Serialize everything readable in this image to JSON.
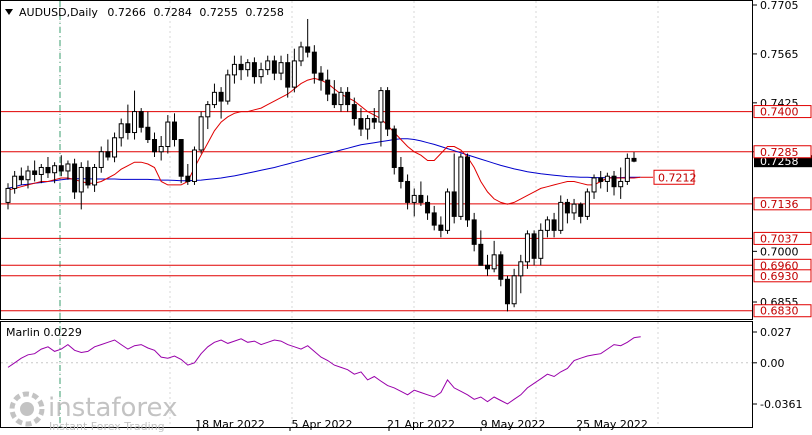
{
  "chart_data": {
    "type": "candlestick",
    "symbol": "AUDUSD",
    "timeframe": "Daily",
    "ohlc_header": [
      "0.7266",
      "0.7284",
      "0.7255",
      "0.7258"
    ],
    "price_ticks": [
      "0.7705",
      "0.7565",
      "0.7425",
      "0.7285",
      "0.7000",
      "0.6855"
    ],
    "current_price": 0.7258,
    "current_price_label": "0.7258",
    "levels": [
      {
        "value": 0.74,
        "label": "0.7400"
      },
      {
        "value": 0.7285,
        "label": "0.7285"
      },
      {
        "value": 0.7136,
        "label": "0.7136"
      },
      {
        "value": 0.7037,
        "label": "0.7037"
      },
      {
        "value": 0.696,
        "label": "0.6960"
      },
      {
        "value": 0.693,
        "label": "0.6930"
      },
      {
        "value": 0.683,
        "label": "0.6830"
      }
    ],
    "annotation": {
      "value": 0.7212,
      "label": "0.7212"
    },
    "date_labels": [
      "18 Mar 2022",
      "5 Apr 2022",
      "21 Apr 2022",
      "9 May 2022",
      "25 May 2022"
    ],
    "candles": [
      [
        0.714,
        0.7195,
        0.712,
        0.718
      ],
      [
        0.718,
        0.723,
        0.7165,
        0.7215
      ],
      [
        0.7215,
        0.724,
        0.719,
        0.7205
      ],
      [
        0.7205,
        0.7245,
        0.718,
        0.723
      ],
      [
        0.723,
        0.726,
        0.72,
        0.722
      ],
      [
        0.722,
        0.725,
        0.7195,
        0.724
      ],
      [
        0.724,
        0.727,
        0.721,
        0.7225
      ],
      [
        0.7225,
        0.7255,
        0.7195,
        0.7245
      ],
      [
        0.7245,
        0.7275,
        0.7215,
        0.723
      ],
      [
        0.723,
        0.726,
        0.7205,
        0.725
      ],
      [
        0.725,
        0.7265,
        0.715,
        0.717
      ],
      [
        0.717,
        0.7255,
        0.712,
        0.724
      ],
      [
        0.724,
        0.726,
        0.718,
        0.719
      ],
      [
        0.719,
        0.725,
        0.717,
        0.724
      ],
      [
        0.724,
        0.73,
        0.7225,
        0.7285
      ],
      [
        0.7285,
        0.732,
        0.726,
        0.727
      ],
      [
        0.727,
        0.734,
        0.7255,
        0.7325
      ],
      [
        0.7325,
        0.738,
        0.73,
        0.7365
      ],
      [
        0.7365,
        0.742,
        0.732,
        0.734
      ],
      [
        0.734,
        0.746,
        0.732,
        0.74
      ],
      [
        0.74,
        0.741,
        0.734,
        0.7355
      ],
      [
        0.7355,
        0.74,
        0.731,
        0.732
      ],
      [
        0.732,
        0.734,
        0.727,
        0.7285
      ],
      [
        0.7285,
        0.733,
        0.726,
        0.73
      ],
      [
        0.73,
        0.739,
        0.728,
        0.737
      ],
      [
        0.737,
        0.7395,
        0.73,
        0.732
      ],
      [
        0.732,
        0.732,
        0.7195,
        0.7215
      ],
      [
        0.7215,
        0.725,
        0.719,
        0.72
      ],
      [
        0.72,
        0.73,
        0.719,
        0.729
      ],
      [
        0.729,
        0.74,
        0.728,
        0.7385
      ],
      [
        0.7385,
        0.743,
        0.735,
        0.742
      ],
      [
        0.742,
        0.748,
        0.741,
        0.7455
      ],
      [
        0.7455,
        0.747,
        0.738,
        0.743
      ],
      [
        0.743,
        0.752,
        0.742,
        0.7505
      ],
      [
        0.7505,
        0.756,
        0.748,
        0.7535
      ],
      [
        0.7535,
        0.756,
        0.749,
        0.752
      ],
      [
        0.752,
        0.755,
        0.75,
        0.754
      ],
      [
        0.754,
        0.7555,
        0.748,
        0.75
      ],
      [
        0.75,
        0.754,
        0.748,
        0.752
      ],
      [
        0.752,
        0.756,
        0.7505,
        0.7545
      ],
      [
        0.7545,
        0.756,
        0.749,
        0.751
      ],
      [
        0.751,
        0.756,
        0.749,
        0.754
      ],
      [
        0.754,
        0.7565,
        0.744,
        0.747
      ],
      [
        0.747,
        0.758,
        0.7455,
        0.7545
      ],
      [
        0.7545,
        0.76,
        0.753,
        0.7585
      ],
      [
        0.7585,
        0.7665,
        0.7555,
        0.757
      ],
      [
        0.757,
        0.759,
        0.748,
        0.751
      ],
      [
        0.751,
        0.753,
        0.746,
        0.749
      ],
      [
        0.749,
        0.752,
        0.743,
        0.745
      ],
      [
        0.745,
        0.749,
        0.741,
        0.742
      ],
      [
        0.742,
        0.747,
        0.74,
        0.7455
      ],
      [
        0.7455,
        0.747,
        0.74,
        0.742
      ],
      [
        0.742,
        0.744,
        0.736,
        0.738
      ],
      [
        0.738,
        0.741,
        0.733,
        0.735
      ],
      [
        0.735,
        0.739,
        0.732,
        0.738
      ],
      [
        0.738,
        0.741,
        0.735,
        0.737
      ],
      [
        0.737,
        0.747,
        0.73,
        0.746
      ],
      [
        0.746,
        0.747,
        0.733,
        0.735
      ],
      [
        0.735,
        0.736,
        0.722,
        0.724
      ],
      [
        0.724,
        0.727,
        0.718,
        0.72
      ],
      [
        0.72,
        0.722,
        0.712,
        0.714
      ],
      [
        0.714,
        0.718,
        0.71,
        0.716
      ],
      [
        0.716,
        0.72,
        0.713,
        0.714
      ],
      [
        0.714,
        0.716,
        0.709,
        0.711
      ],
      [
        0.711,
        0.713,
        0.706,
        0.7075
      ],
      [
        0.7075,
        0.71,
        0.704,
        0.706
      ],
      [
        0.706,
        0.718,
        0.705,
        0.717
      ],
      [
        0.717,
        0.728,
        0.708,
        0.71
      ],
      [
        0.71,
        0.728,
        0.709,
        0.727
      ],
      [
        0.727,
        0.728,
        0.707,
        0.709
      ],
      [
        0.709,
        0.711,
        0.7,
        0.702
      ],
      [
        0.702,
        0.706,
        0.696,
        0.696
      ],
      [
        0.696,
        0.699,
        0.693,
        0.695
      ],
      [
        0.695,
        0.703,
        0.694,
        0.699
      ],
      [
        0.699,
        0.7,
        0.69,
        0.692
      ],
      [
        0.692,
        0.693,
        0.6828,
        0.685
      ],
      [
        0.685,
        0.695,
        0.684,
        0.693
      ],
      [
        0.693,
        0.699,
        0.688,
        0.697
      ],
      [
        0.697,
        0.706,
        0.695,
        0.705
      ],
      [
        0.705,
        0.706,
        0.696,
        0.698
      ],
      [
        0.698,
        0.708,
        0.696,
        0.706
      ],
      [
        0.706,
        0.71,
        0.704,
        0.709
      ],
      [
        0.709,
        0.711,
        0.704,
        0.706
      ],
      [
        0.706,
        0.716,
        0.705,
        0.714
      ],
      [
        0.714,
        0.715,
        0.708,
        0.711
      ],
      [
        0.711,
        0.715,
        0.709,
        0.7135
      ],
      [
        0.7135,
        0.714,
        0.708,
        0.71
      ],
      [
        0.71,
        0.718,
        0.709,
        0.717
      ],
      [
        0.717,
        0.722,
        0.715,
        0.721
      ],
      [
        0.721,
        0.723,
        0.718,
        0.72
      ],
      [
        0.72,
        0.7225,
        0.717,
        0.7215
      ],
      [
        0.7215,
        0.723,
        0.716,
        0.7185
      ],
      [
        0.7185,
        0.724,
        0.715,
        0.72
      ],
      [
        0.72,
        0.728,
        0.719,
        0.7266
      ],
      [
        0.7266,
        0.7284,
        0.7255,
        0.7258
      ]
    ],
    "ma_red": [
      0.7175,
      0.718,
      0.7185,
      0.719,
      0.7195,
      0.72,
      0.72,
      0.7205,
      0.721,
      0.721,
      0.7205,
      0.72,
      0.7195,
      0.7195,
      0.72,
      0.721,
      0.722,
      0.7235,
      0.7245,
      0.7255,
      0.7255,
      0.725,
      0.724,
      0.72,
      0.719,
      0.719,
      0.719,
      0.72,
      0.724,
      0.7275,
      0.731,
      0.7345,
      0.737,
      0.7385,
      0.7395,
      0.74,
      0.74,
      0.7405,
      0.741,
      0.742,
      0.743,
      0.744,
      0.745,
      0.7465,
      0.748,
      0.749,
      0.7495,
      0.749,
      0.748,
      0.7465,
      0.745,
      0.744,
      0.743,
      0.7415,
      0.74,
      0.739,
      0.738,
      0.736,
      0.734,
      0.732,
      0.73,
      0.7285,
      0.7275,
      0.726,
      0.726,
      0.728,
      0.73,
      0.73,
      0.729,
      0.727,
      0.724,
      0.72,
      0.717,
      0.715,
      0.714,
      0.7135,
      0.714,
      0.715,
      0.716,
      0.717,
      0.718,
      0.7185,
      0.719,
      0.7195,
      0.72,
      0.72,
      0.7195,
      0.719,
      0.719,
      0.72,
      0.721,
      0.721,
      0.721,
      0.721,
      0.721,
      0.7212
    ],
    "ma_blue": [
      0.718,
      0.7185,
      0.719,
      0.7192,
      0.7195,
      0.7197,
      0.72,
      0.7202,
      0.7205,
      0.7207,
      0.7208,
      0.7208,
      0.7208,
      0.7207,
      0.7207,
      0.7207,
      0.7207,
      0.7206,
      0.7206,
      0.7206,
      0.7206,
      0.7206,
      0.7205,
      0.7204,
      0.7204,
      0.7203,
      0.7202,
      0.7202,
      0.7203,
      0.7204,
      0.7206,
      0.7208,
      0.721,
      0.7213,
      0.7216,
      0.722,
      0.7224,
      0.7228,
      0.7232,
      0.7236,
      0.724,
      0.7245,
      0.725,
      0.7255,
      0.726,
      0.7265,
      0.727,
      0.7275,
      0.728,
      0.7285,
      0.729,
      0.7295,
      0.73,
      0.7305,
      0.7308,
      0.7311,
      0.7314,
      0.7317,
      0.732,
      0.7322,
      0.7322,
      0.732,
      0.7316,
      0.7311,
      0.7306,
      0.73,
      0.7294,
      0.7288,
      0.7282,
      0.7276,
      0.727,
      0.7264,
      0.7258,
      0.7252,
      0.7246,
      0.7241,
      0.7236,
      0.7232,
      0.7228,
      0.7225,
      0.7222,
      0.722,
      0.7218,
      0.7216,
      0.7214,
      0.7213,
      0.7212,
      0.7212,
      0.7211,
      0.7211,
      0.7211,
      0.7211,
      0.7211,
      0.7212,
      0.7212,
      0.7212
    ],
    "marlin": {
      "label": "Marlin 0.0229",
      "ticks": [
        "0.027",
        "0.00",
        "-0.0361"
      ],
      "ylim": [
        -0.0361,
        0.027
      ],
      "values": [
        -0.004,
        0.0,
        0.004,
        0.007,
        0.008,
        0.012,
        0.014,
        0.01,
        0.012,
        0.016,
        0.011,
        0.009,
        0.01,
        0.014,
        0.016,
        0.018,
        0.02,
        0.016,
        0.012,
        0.015,
        0.016,
        0.013,
        0.011,
        0.005,
        0.004,
        0.006,
        0.003,
        -0.002,
        0.0,
        0.008,
        0.014,
        0.018,
        0.02,
        0.017,
        0.019,
        0.021,
        0.018,
        0.019,
        0.016,
        0.018,
        0.02,
        0.019,
        0.016,
        0.014,
        0.012,
        0.015,
        0.01,
        0.005,
        0.002,
        -0.002,
        -0.004,
        -0.006,
        -0.01,
        -0.008,
        -0.015,
        -0.012,
        -0.016,
        -0.02,
        -0.022,
        -0.025,
        -0.028,
        -0.024,
        -0.026,
        -0.028,
        -0.03,
        -0.026,
        -0.015,
        -0.022,
        -0.025,
        -0.028,
        -0.032,
        -0.03,
        -0.034,
        -0.03,
        -0.033,
        -0.036,
        -0.032,
        -0.028,
        -0.022,
        -0.018,
        -0.014,
        -0.01,
        -0.012,
        -0.008,
        -0.005,
        0.002,
        0.004,
        0.006,
        0.007,
        0.008,
        0.012,
        0.016,
        0.015,
        0.018,
        0.022,
        0.0229
      ]
    }
  },
  "watermark": {
    "brand": "instaforex",
    "tagline": "Instant Forex Trading"
  },
  "colors": {
    "up": "#ffffff",
    "down": "#000000",
    "level": "#e00000",
    "ma_red": "#e00000",
    "ma_blue": "#0000cc",
    "marlin": "#9900aa",
    "grid": "#d7d7d7"
  }
}
